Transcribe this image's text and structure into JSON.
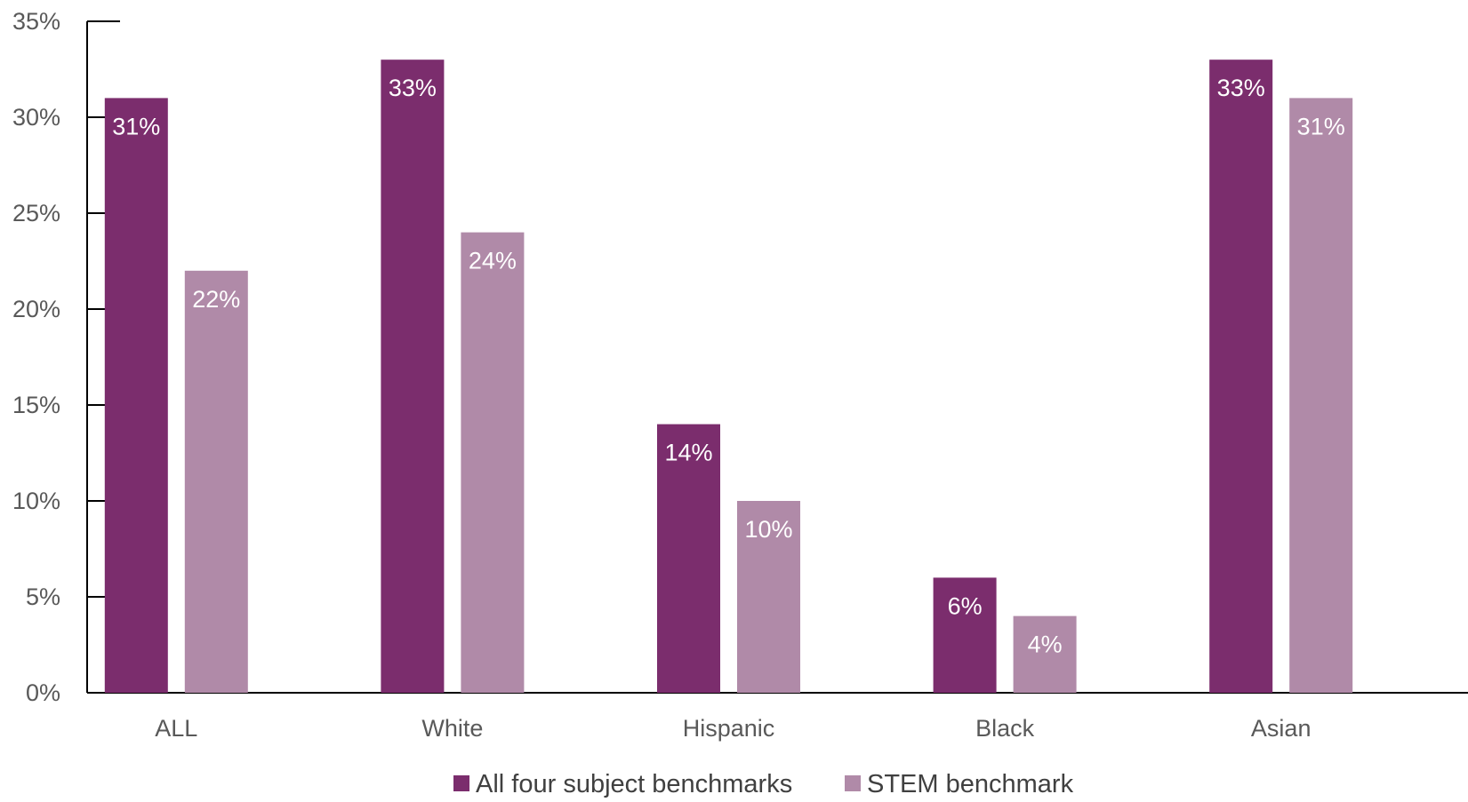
{
  "chart_data": {
    "type": "bar",
    "categories": [
      "ALL",
      "White",
      "Hispanic",
      "Black",
      "Asian"
    ],
    "series": [
      {
        "name": "All four subject benchmarks",
        "values": [
          31,
          33,
          14,
          6,
          33
        ],
        "labels": [
          "31%",
          "33%",
          "14%",
          "6%",
          "33%"
        ]
      },
      {
        "name": "STEM benchmark",
        "values": [
          22,
          24,
          10,
          4,
          31
        ],
        "labels": [
          "22%",
          "24%",
          "10%",
          "4%",
          "31%"
        ]
      }
    ],
    "ylim": [
      0,
      35
    ],
    "yticks": [
      0,
      5,
      10,
      15,
      20,
      25,
      30,
      35
    ],
    "ytick_labels": [
      "0%",
      "5%",
      "10%",
      "15%",
      "20%",
      "25%",
      "30%",
      "35%"
    ],
    "title": "",
    "xlabel": "",
    "ylabel": "",
    "grid": false,
    "legend_position": "bottom-center",
    "colors": {
      "series_0": "#7b2d6d",
      "series_1": "#b08aa8",
      "axis": "#000000"
    }
  }
}
